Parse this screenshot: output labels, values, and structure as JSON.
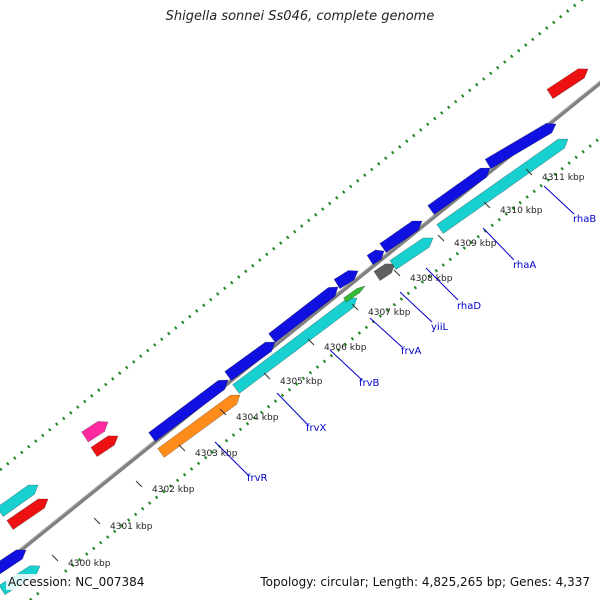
{
  "title": "Shigella sonnei Ss046, complete genome",
  "footer": {
    "accession": "Accession: NC_007384",
    "summary": "Topology: circular; Length: 4,825,265 bp; Genes: 4,337"
  },
  "ticks": [
    {
      "label": "4300 kbp"
    },
    {
      "label": "4301 kbp"
    },
    {
      "label": "4302 kbp"
    },
    {
      "label": "4303 kbp"
    },
    {
      "label": "4304 kbp"
    },
    {
      "label": "4305 kbp"
    },
    {
      "label": "4306 kbp"
    },
    {
      "label": "4307 kbp"
    },
    {
      "label": "4308 kbp"
    },
    {
      "label": "4309 kbp"
    },
    {
      "label": "4310 kbp"
    },
    {
      "label": "4311 kbp"
    }
  ],
  "gene_labels": [
    "frvR",
    "frvX",
    "frvB",
    "frvA",
    "yiiL",
    "rhaD",
    "rhaA",
    "rhaB"
  ],
  "colors": {
    "backbone": "#808080",
    "cds_blue": "#1010e0",
    "cds_cyan": "#18d0d0",
    "cds_orange": "#ff8c1a",
    "cds_red": "#ee1111",
    "cds_magenta": "#ff2aa0",
    "cds_gray": "#606060",
    "cds_green": "#33bb33",
    "tick": "#228822",
    "label": "#0000cc"
  }
}
